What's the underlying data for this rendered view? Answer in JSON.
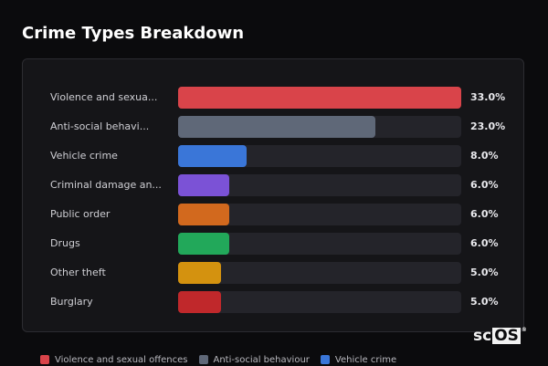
{
  "chart_data": {
    "type": "bar",
    "orientation": "horizontal",
    "title": "Crime Types Breakdown",
    "xlabel": "",
    "ylabel": "",
    "value_unit": "%",
    "xlim": [
      0,
      33
    ],
    "grid": false,
    "legend_position": "bottom",
    "categories": [
      "Violence and sexua...",
      "Anti-social behavi...",
      "Vehicle crime",
      "Criminal damage an...",
      "Public order",
      "Drugs",
      "Other theft",
      "Burglary"
    ],
    "values": [
      33.0,
      23.0,
      8.0,
      6.0,
      6.0,
      6.0,
      5.0,
      5.0
    ],
    "value_labels": [
      "33.0%",
      "23.0%",
      "8.0%",
      "6.0%",
      "6.0%",
      "6.0%",
      "5.0%",
      "5.0%"
    ],
    "colors": [
      "#d9444a",
      "#5f6878",
      "#3a76d8",
      "#7b52d6",
      "#d2691e",
      "#22a85a",
      "#d4920f",
      "#c0282b"
    ]
  },
  "legend": [
    {
      "label": "Violence and sexual offences",
      "color": "#d9444a"
    },
    {
      "label": "Anti-social behaviour",
      "color": "#5f6878"
    },
    {
      "label": "Vehicle crime",
      "color": "#3a76d8"
    }
  ],
  "logo": {
    "text_sc": "sc",
    "text_os": "OS",
    "mark": "®"
  }
}
